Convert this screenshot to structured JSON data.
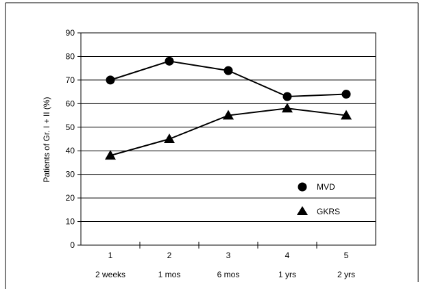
{
  "chart_data": {
    "type": "line",
    "title": "",
    "xlabel": "",
    "ylabel": "Patients of Gr.  I + II  (%)",
    "categories": [
      "1",
      "2",
      "3",
      "4",
      "5"
    ],
    "sublabels": [
      "2 weeks",
      "1 mos",
      "6 mos",
      "1 yrs",
      "2 yrs"
    ],
    "ylim": [
      0,
      90
    ],
    "yticks": [
      "0",
      "10",
      "20",
      "30",
      "40",
      "50",
      "60",
      "70",
      "80",
      "90"
    ],
    "grid": "horizontal",
    "legend_position": "lower-right",
    "series": [
      {
        "name": "MVD",
        "marker": "circle",
        "values": [
          70,
          78,
          74,
          63,
          64
        ]
      },
      {
        "name": "GKRS",
        "marker": "triangle",
        "values": [
          38,
          45,
          55,
          58,
          55
        ]
      }
    ]
  }
}
